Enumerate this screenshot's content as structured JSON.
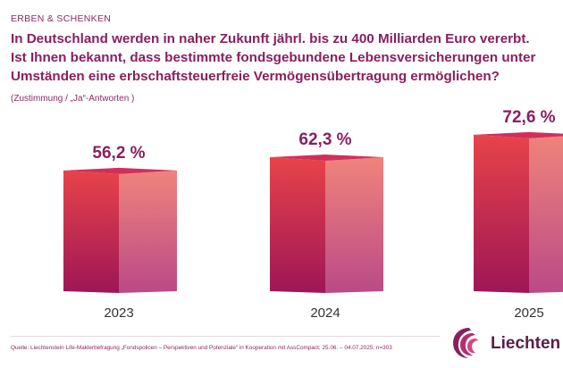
{
  "header": {
    "kicker": "ERBEN & SCHENKEN",
    "headline_lines": [
      "In Deutschland werden in naher Zukunft jährl. bis zu 400 Milliarden Euro vererbt.",
      "Ist Ihnen bekannt, dass bestimmte fondsgebundene Lebensversicherungen unter",
      "Umständen eine erbschaftsteuerfreie Vermögensübertragung ermöglichen?"
    ],
    "subtitle": "(Zustimmung / „Ja“-Antworten )"
  },
  "chart_data": {
    "type": "bar",
    "title": "In Deutschland werden in naher Zukunft jährl. bis zu 400 Milliarden Euro vererbt. Ist Ihnen bekannt, dass bestimmte fondsgebundene Lebensversicherungen unter Umständen eine erbschaftsteuerfreie Vermögensübertragung ermöglichen?",
    "subtitle": "(Zustimmung / „Ja“-Antworten )",
    "categories": [
      "2023",
      "2024",
      "2025"
    ],
    "values": [
      56.2,
      62.3,
      72.6
    ],
    "data_labels": [
      "56,2 %",
      "62,3 %",
      "72,6 %"
    ],
    "unit": "%",
    "xlabel": "",
    "ylabel": "",
    "ylim": [
      0,
      80
    ],
    "grid": false,
    "legend": "none",
    "style": "3d-box",
    "colors": {
      "front_top": "#e8434a",
      "front_bottom": "#9e1656",
      "side_top": "#f0837c",
      "side_bottom": "#ba4a86",
      "top_face": "#d12f5a",
      "label": "#8a1f5e",
      "axis_text": "#333333"
    }
  },
  "footer": {
    "source": "Quelle: Liechtenstein Life-Maklerbefragung „Fondspolicen – Perspektiven und Potenziale“ in Kooperation mit AssCompact; 25.06. – 04.07.2025; n=303",
    "logo_text": "Liechten",
    "logo_icon": "liechtenstein-life-swirl-icon"
  }
}
